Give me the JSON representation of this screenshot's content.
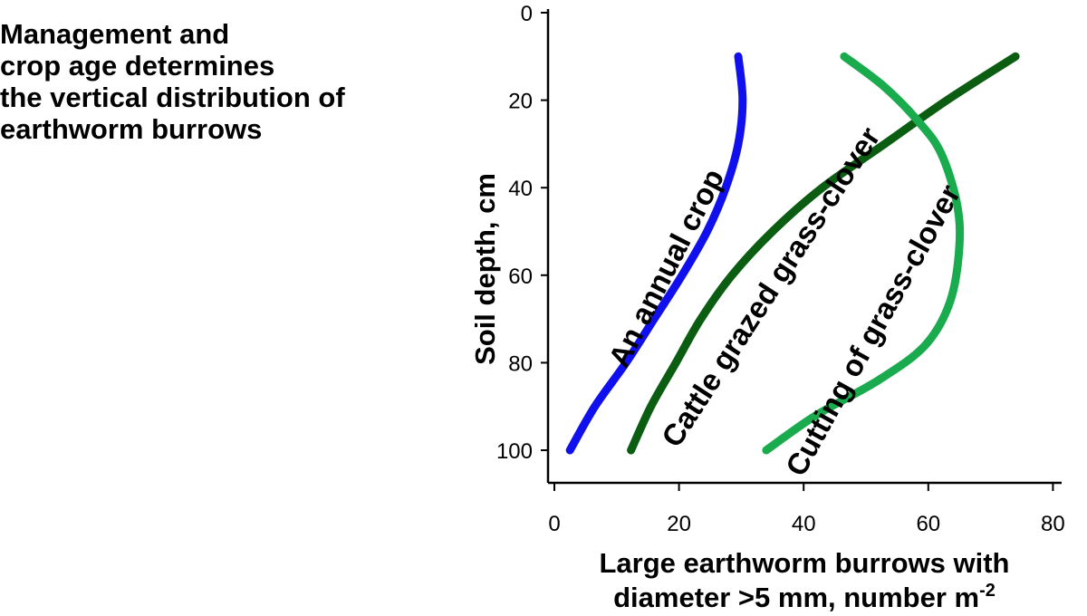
{
  "headline": [
    "Management and",
    "crop age determines",
    "the vertical distribution of",
    "earthworm burrows"
  ],
  "chart_data": {
    "type": "line",
    "xlabel_line1": "Large earthworm burrows with",
    "xlabel_line2": "diameter >5 mm, number m",
    "xlabel_superscript": "-2",
    "ylabel": "Soil depth, cm",
    "xlim": [
      0,
      80
    ],
    "ylim": [
      0,
      100
    ],
    "y_inverted": true,
    "x_ticks": [
      0,
      20,
      40,
      60,
      80
    ],
    "y_ticks": [
      0,
      20,
      40,
      60,
      80,
      100
    ],
    "grid": false,
    "series": [
      {
        "name": "An annual crop",
        "color": "#1010ee",
        "points": [
          [
            29.5,
            10
          ],
          [
            30.2,
            20
          ],
          [
            29.5,
            30
          ],
          [
            27.5,
            40
          ],
          [
            24.5,
            50
          ],
          [
            20.5,
            60
          ],
          [
            16,
            70
          ],
          [
            11.5,
            80
          ],
          [
            6.5,
            90
          ],
          [
            2.5,
            100
          ]
        ]
      },
      {
        "name": "Cattle grazed grass-clover",
        "color": "#0b5d12",
        "points": [
          [
            74,
            10
          ],
          [
            63,
            20
          ],
          [
            53,
            30
          ],
          [
            43,
            40
          ],
          [
            35,
            50
          ],
          [
            28.5,
            60
          ],
          [
            23.5,
            70
          ],
          [
            19.5,
            80
          ],
          [
            15.5,
            90
          ],
          [
            12.3,
            100
          ]
        ]
      },
      {
        "name": "Cutting of grass-clover",
        "color": "#1aab4e",
        "points": [
          [
            46.5,
            10
          ],
          [
            53,
            17
          ],
          [
            58.5,
            25
          ],
          [
            62,
            32
          ],
          [
            64.5,
            43
          ],
          [
            65,
            53
          ],
          [
            63.5,
            66
          ],
          [
            59.5,
            76
          ],
          [
            52,
            84
          ],
          [
            42,
            92
          ],
          [
            34,
            100
          ]
        ]
      }
    ]
  }
}
